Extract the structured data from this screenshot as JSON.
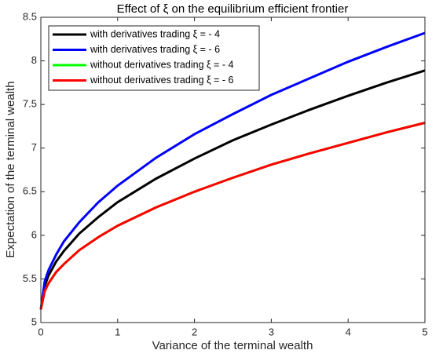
{
  "chart_data": {
    "type": "line",
    "title": "Effect of ξ on the equilibrium efficient frontier",
    "x_label": "Variance of the terminal wealth",
    "y_label": "Expectation of the terminal wealth",
    "x": [
      0,
      0.05,
      0.1,
      0.2,
      0.3,
      0.5,
      0.75,
      1,
      1.5,
      2,
      2.5,
      3,
      3.5,
      4,
      4.5,
      5
    ],
    "series": [
      {
        "name": "with derivatives trading ξ = - 4",
        "color": "#000000",
        "values": [
          5.15,
          5.42,
          5.54,
          5.7,
          5.82,
          6.02,
          6.21,
          6.38,
          6.65,
          6.88,
          7.09,
          7.27,
          7.44,
          7.6,
          7.75,
          7.89
        ]
      },
      {
        "name": "with derivatives trading ξ = - 6",
        "color": "#0000ff",
        "values": [
          5.15,
          5.47,
          5.6,
          5.78,
          5.93,
          6.15,
          6.38,
          6.57,
          6.89,
          7.16,
          7.39,
          7.61,
          7.8,
          7.99,
          8.16,
          8.32
        ]
      },
      {
        "name": "without derivatives trading ξ = - 4",
        "color": "#00ff00",
        "values": [
          5.15,
          5.36,
          5.45,
          5.58,
          5.67,
          5.83,
          5.98,
          6.11,
          6.32,
          6.5,
          6.66,
          6.81,
          6.94,
          7.06,
          7.18,
          7.29
        ]
      },
      {
        "name": "without derivatives trading ξ = - 6",
        "color": "#ff0000",
        "values": [
          5.15,
          5.36,
          5.45,
          5.58,
          5.67,
          5.83,
          5.98,
          6.11,
          6.32,
          6.5,
          6.66,
          6.81,
          6.94,
          7.06,
          7.18,
          7.29
        ]
      }
    ],
    "xlim": [
      0,
      5
    ],
    "xticks": [
      0,
      1,
      2,
      3,
      4,
      5
    ],
    "ylim": [
      5,
      8.5
    ],
    "yticks": [
      5,
      5.5,
      6,
      6.5,
      7,
      7.5,
      8,
      8.5
    ],
    "legend": "upper left",
    "grid": false
  }
}
